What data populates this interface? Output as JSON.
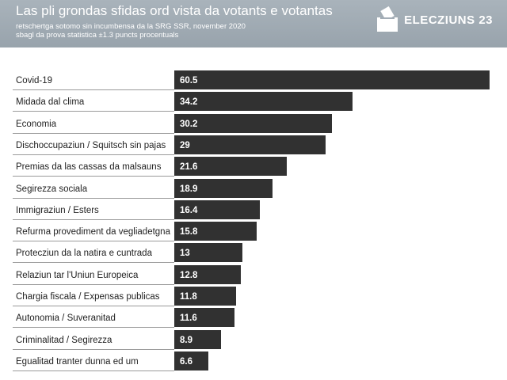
{
  "header": {
    "title": "Las pli grondas sfidas ord vista da votants e votantas",
    "subtitle_line1": "retschertga sotomo sin incumbensa da la SRG SSR, november 2020",
    "subtitle_line2": "sbagl da prova statistica ±1.3 puncts procentuals",
    "logo_text": "ELECZIUNS 23"
  },
  "colors": {
    "header_bg": "#a3adb6",
    "bar": "#313131",
    "bar_text": "#ffffff"
  },
  "chart_data": {
    "type": "bar",
    "orientation": "horizontal",
    "title": "Las pli grondas sfidas ord vista da votants e votantas",
    "xlabel": "",
    "ylabel": "",
    "xlim": [
      0,
      60.5
    ],
    "categories": [
      "Covid-19",
      "Midada dal clima",
      "Economia",
      "Dischoccupaziun / Squitsch sin pajas",
      "Premias da las cassas da malsauns",
      "Segirezza sociala",
      "Immigraziun / Esters",
      "Refurma provediment da vegliadetgna",
      "Protecziun da la natira e cuntrada",
      "Relaziun tar l'Uniun Europeica",
      "Chargia fiscala / Expensas publicas",
      "Autonomia / Suveranitad",
      "Criminalitad / Segirezza",
      "Egualitad tranter dunna ed um"
    ],
    "values": [
      60.5,
      34.2,
      30.2,
      29,
      21.6,
      18.9,
      16.4,
      15.8,
      13,
      12.8,
      11.8,
      11.6,
      8.9,
      6.6
    ],
    "value_labels": [
      "60.5",
      "34.2",
      "30.2",
      "29",
      "21.6",
      "18.9",
      "16.4",
      "15.8",
      "13",
      "12.8",
      "11.8",
      "11.6",
      "8.9",
      "6.6"
    ]
  }
}
